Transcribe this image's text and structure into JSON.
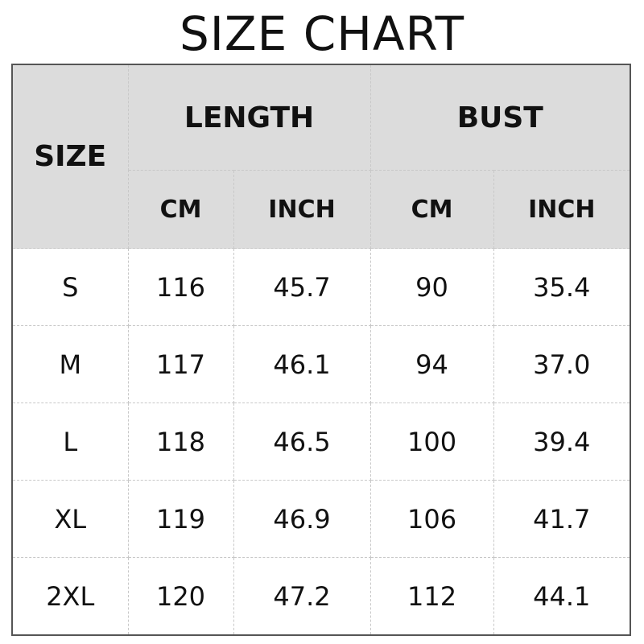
{
  "title": "SIZE CHART",
  "header": {
    "size": "SIZE",
    "groups": [
      "LENGTH",
      "BUST"
    ],
    "units": [
      "CM",
      "INCH",
      "CM",
      "INCH"
    ]
  },
  "colors": {
    "header_bg": "#dcdcdc",
    "border": "#555555"
  },
  "rows": [
    [
      "S",
      "116",
      "45.7",
      "90",
      "35.4"
    ],
    [
      "M",
      "117",
      "46.1",
      "94",
      "37.0"
    ],
    [
      "L",
      "118",
      "46.5",
      "100",
      "39.4"
    ],
    [
      "XL",
      "119",
      "46.9",
      "106",
      "41.7"
    ],
    [
      "2XL",
      "120",
      "47.2",
      "112",
      "44.1"
    ]
  ]
}
